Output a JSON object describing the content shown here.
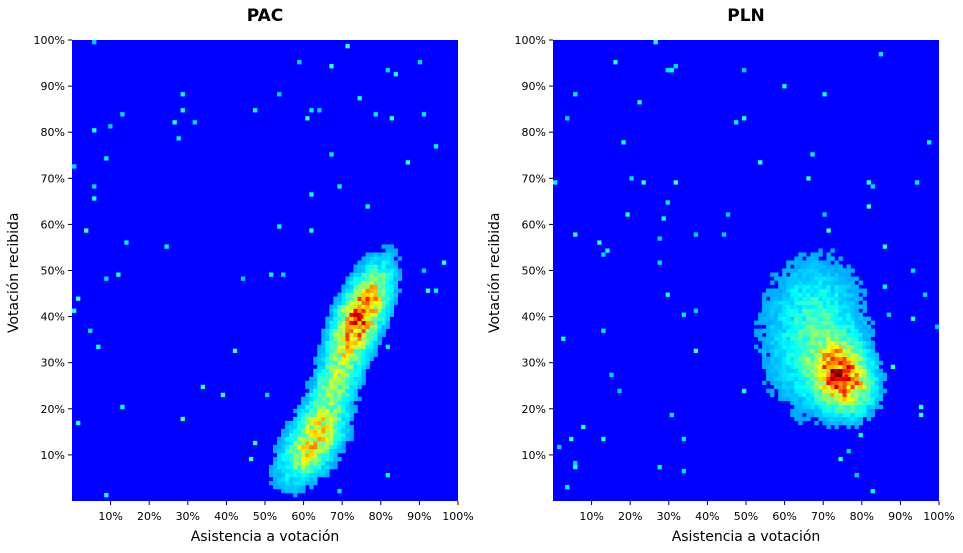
{
  "chart_data": [
    {
      "type": "heatmap",
      "title": "PAC",
      "xlabel": "Asistencia a votación",
      "ylabel": "Votación recibida",
      "xlim": [
        0,
        100
      ],
      "ylim": [
        0,
        100
      ],
      "xticks": [
        "10%",
        "20%",
        "30%",
        "40%",
        "50%",
        "60%",
        "70%",
        "80%",
        "90%",
        "100%"
      ],
      "yticks": [
        "10%",
        "20%",
        "30%",
        "40%",
        "50%",
        "60%",
        "70%",
        "80%",
        "90%",
        "100%"
      ],
      "background_color": "#0000ff",
      "colormap": "jet",
      "density_clusters": [
        {
          "x_center": 75,
          "y_center": 41,
          "x_spread": 4.5,
          "y_spread": 6,
          "correlation": 0.6,
          "weight": 1.0
        },
        {
          "x_center": 62,
          "y_center": 12,
          "x_spread": 5,
          "y_spread": 5,
          "correlation": 0.5,
          "weight": 0.6
        },
        {
          "x_center": 68,
          "y_center": 25,
          "x_spread": 5,
          "y_spread": 8,
          "correlation": 0.7,
          "weight": 0.45
        }
      ],
      "peak": {
        "x": 75,
        "y": 40
      }
    },
    {
      "type": "heatmap",
      "title": "PLN",
      "xlabel": "Asistencia a votación",
      "ylabel": "Votación recibida",
      "xlim": [
        0,
        100
      ],
      "ylim": [
        0,
        100
      ],
      "xticks": [
        "10%",
        "20%",
        "30%",
        "40%",
        "50%",
        "60%",
        "70%",
        "80%",
        "90%",
        "100%"
      ],
      "yticks": [
        "10%",
        "20%",
        "30%",
        "40%",
        "50%",
        "60%",
        "70%",
        "80%",
        "90%",
        "100%"
      ],
      "background_color": "#0000ff",
      "colormap": "jet",
      "density_clusters": [
        {
          "x_center": 75,
          "y_center": 27,
          "x_spread": 4.5,
          "y_spread": 4.5,
          "correlation": -0.2,
          "weight": 1.0
        },
        {
          "x_center": 68,
          "y_center": 36,
          "x_spread": 8,
          "y_spread": 10,
          "correlation": 0.0,
          "weight": 0.35
        }
      ],
      "peak": {
        "x": 76,
        "y": 27
      }
    }
  ]
}
